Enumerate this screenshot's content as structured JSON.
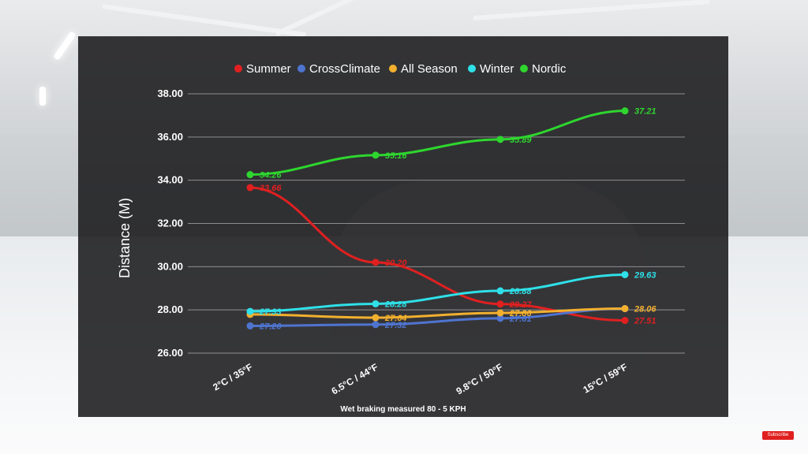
{
  "chart_data": {
    "type": "line",
    "title": "",
    "xlabel": "Wet braking measured 80 - 5 KPH",
    "ylabel": "Distance (M)",
    "ylim": [
      26,
      38
    ],
    "yticks": [
      "26.00",
      "28.00",
      "30.00",
      "32.00",
      "34.00",
      "36.00",
      "38.00"
    ],
    "categories": [
      "2°C / 35°F",
      "6.5°C / 44°F",
      "9.8°C / 50°F",
      "15°C / 59°F"
    ],
    "grid": true,
    "legend_position": "top",
    "series": [
      {
        "name": "Summer",
        "color": "#e02020",
        "values": [
          33.66,
          30.2,
          28.27,
          27.51
        ],
        "labels": [
          "33.66",
          "30.20",
          "28.27",
          "27.51"
        ]
      },
      {
        "name": "CrossClimate",
        "color": "#4f74d0",
        "values": [
          27.26,
          27.32,
          27.61,
          28.06
        ],
        "labels": [
          "27.26",
          "27.32",
          "27.61",
          ""
        ]
      },
      {
        "name": "All Season",
        "color": "#f2b02e",
        "values": [
          27.79,
          27.64,
          27.86,
          28.06
        ],
        "labels": [
          "",
          "27.64",
          "27.86",
          "28.06"
        ]
      },
      {
        "name": "Winter",
        "color": "#2fe0e8",
        "values": [
          27.93,
          28.28,
          28.88,
          29.63
        ],
        "labels": [
          "27.93",
          "28.28",
          "28.88",
          "29.63"
        ]
      },
      {
        "name": "Nordic",
        "color": "#2ed62e",
        "values": [
          34.26,
          35.16,
          35.89,
          37.21
        ],
        "labels": [
          "34.26",
          "35.16",
          "35.89",
          "37.21"
        ]
      }
    ]
  },
  "badge": {
    "subscribe_label": "Subscribe"
  }
}
